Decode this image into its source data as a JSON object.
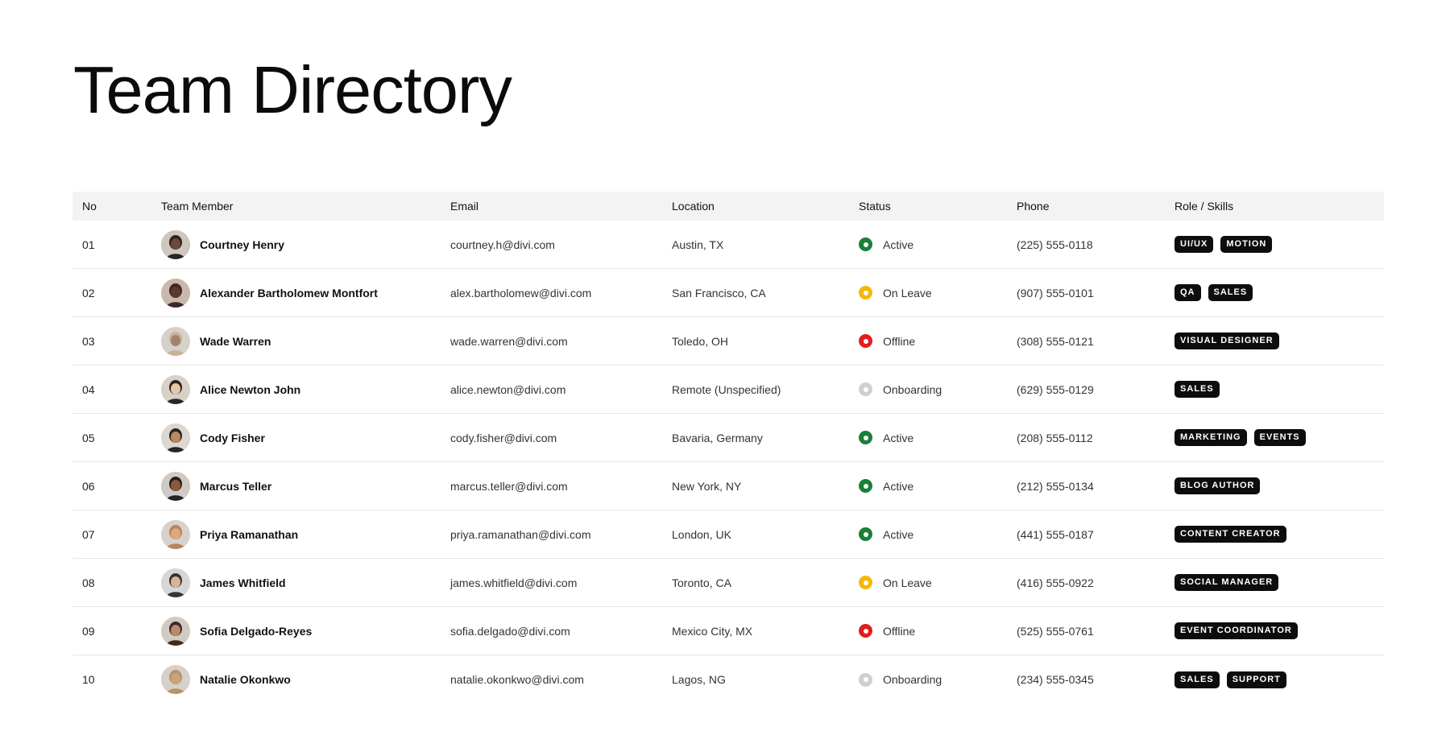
{
  "page": {
    "title": "Team Directory"
  },
  "table": {
    "headers": {
      "no": "No",
      "member": "Team Member",
      "email": "Email",
      "location": "Location",
      "status": "Status",
      "phone": "Phone",
      "role": "Role / Skills"
    },
    "status_colors": {
      "Active": "#1a7f37",
      "On Leave": "#f5b70f",
      "Offline": "#e01e1e",
      "Onboarding": "#cfcfcf"
    },
    "rows": [
      {
        "no": "01",
        "name": "Courtney Henry",
        "email": "courtney.h@divi.com",
        "location": "Austin, TX",
        "status": "Active",
        "phone": "(225) 555-0118",
        "roles": [
          "UI/UX",
          "MOTION"
        ]
      },
      {
        "no": "02",
        "name": "Alexander Bartholomew Montfort",
        "email": "alex.bartholomew@divi.com",
        "location": "San Francisco, CA",
        "status": "On Leave",
        "phone": "(907) 555-0101",
        "roles": [
          "QA",
          "SALES"
        ]
      },
      {
        "no": "03",
        "name": "Wade Warren",
        "email": "wade.warren@divi.com",
        "location": "Toledo, OH",
        "status": "Offline",
        "phone": "(308) 555-0121",
        "roles": [
          "VISUAL DESIGNER"
        ]
      },
      {
        "no": "04",
        "name": "Alice Newton John",
        "email": "alice.newton@divi.com",
        "location": "Remote (Unspecified)",
        "status": "Onboarding",
        "phone": "(629) 555-0129",
        "roles": [
          "SALES"
        ]
      },
      {
        "no": "05",
        "name": "Cody Fisher",
        "email": "cody.fisher@divi.com",
        "location": "Bavaria, Germany",
        "status": "Active",
        "phone": "(208) 555-0112",
        "roles": [
          "MARKETING",
          "EVENTS"
        ]
      },
      {
        "no": "06",
        "name": "Marcus Teller",
        "email": "marcus.teller@divi.com",
        "location": "New York, NY",
        "status": "Active",
        "phone": "(212) 555-0134",
        "roles": [
          "BLOG AUTHOR"
        ]
      },
      {
        "no": "07",
        "name": "Priya Ramanathan",
        "email": "priya.ramanathan@divi.com",
        "location": "London, UK",
        "status": "Active",
        "phone": "(441) 555-0187",
        "roles": [
          "CONTENT CREATOR"
        ]
      },
      {
        "no": "08",
        "name": "James Whitfield",
        "email": "james.whitfield@divi.com",
        "location": "Toronto, CA",
        "status": "On Leave",
        "phone": "(416) 555-0922",
        "roles": [
          "SOCIAL MANAGER"
        ]
      },
      {
        "no": "09",
        "name": "Sofia Delgado-Reyes",
        "email": "sofia.delgado@divi.com",
        "location": "Mexico City, MX",
        "status": "Offline",
        "phone": "(525) 555-0761",
        "roles": [
          "EVENT COORDINATOR"
        ]
      },
      {
        "no": "10",
        "name": "Natalie Okonkwo",
        "email": "natalie.okonkwo@divi.com",
        "location": "Lagos, NG",
        "status": "Onboarding",
        "phone": "(234) 555-0345",
        "roles": [
          "SALES",
          "SUPPORT"
        ]
      }
    ]
  }
}
